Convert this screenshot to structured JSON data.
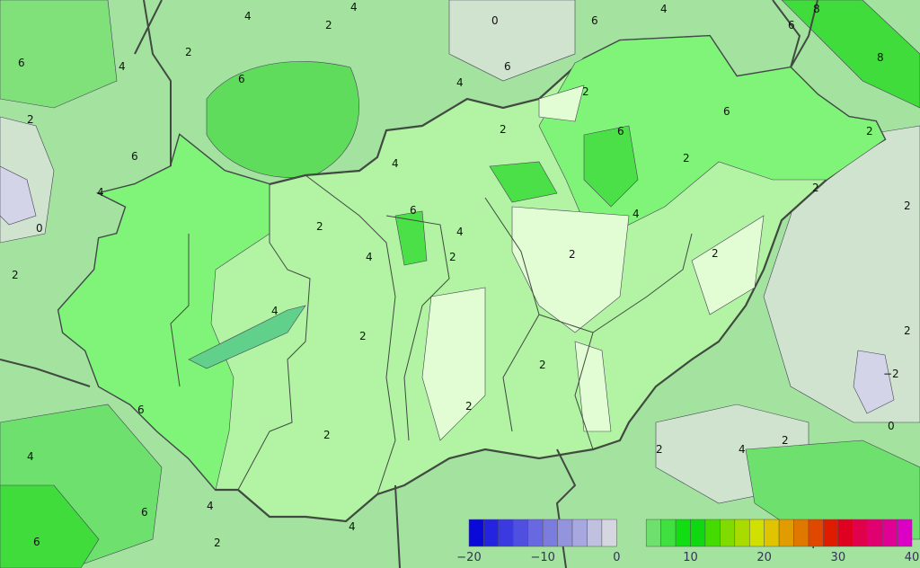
{
  "colorbar": {
    "min": -20,
    "max": 40,
    "step": 2,
    "tick_labels": [
      "−20",
      "−10",
      "0",
      "10",
      "20",
      "30",
      "40"
    ],
    "colors": [
      "#0a0ad8",
      "#2424e0",
      "#3a3ae0",
      "#5050e0",
      "#6868e0",
      "#7c7cde",
      "#9494dc",
      "#a8a8e0",
      "#c0c0e0",
      "#d6d6e0",
      null,
      null,
      "#6ee06e",
      "#40e040",
      "#12dc12",
      "#10d810",
      "#44dc00",
      "#80dc00",
      "#a8dc00",
      "#d0e000",
      "#e0c400",
      "#e09c00",
      "#e07800",
      "#e04800",
      "#e01c00",
      "#e00020",
      "#e0004c",
      "#e00070",
      "#e00094",
      "#dc00c4"
    ]
  },
  "map_colors": {
    "background": "#a4e2a0",
    "hungary_main": "#b2f4a4",
    "hungary_west": "#80f478",
    "hungary_light": "#e2fcd4",
    "dark_green": "#60dc5c",
    "grey_green": "#cfe3cf",
    "lavender": "#d4d4e8",
    "border": "#404a40"
  },
  "contour_labels": [
    "4",
    "4",
    "2",
    "0",
    "6",
    "6",
    "4",
    "2",
    "6",
    "4",
    "6",
    "2",
    "4",
    "6",
    "0",
    "2",
    "4",
    "6",
    "2",
    "6",
    "6",
    "4",
    "2",
    "2",
    "4",
    "2",
    "2",
    "4",
    "2",
    "6",
    "2",
    "2",
    "2",
    "2",
    "4",
    "2",
    "2",
    "4",
    "2",
    "−2",
    "0",
    "2",
    "6",
    "4",
    "4",
    "2",
    "6",
    "4",
    "2",
    "2",
    "6",
    "4",
    "2",
    "4",
    "8",
    "8"
  ]
}
